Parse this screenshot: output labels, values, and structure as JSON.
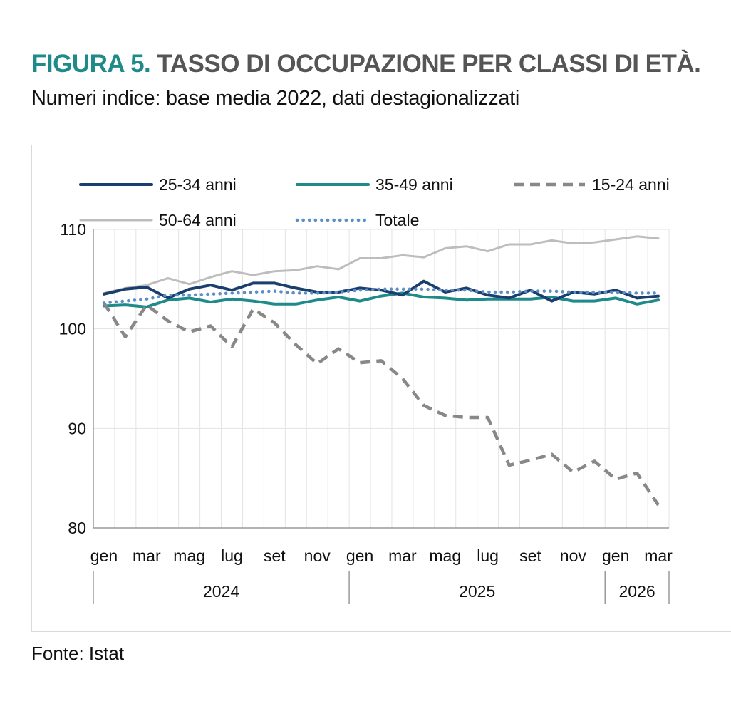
{
  "header": {
    "figure_label": "FIGURA 5.",
    "title": "TASSO DI OCCUPAZIONE PER CLASSI DI ETÀ.",
    "subtitle": "Numeri indice: base media 2022, dati destagionalizzati"
  },
  "footer": {
    "source": "Fonte: Istat"
  },
  "chart_data": {
    "type": "line",
    "title": "",
    "xlabel": "",
    "ylabel": "",
    "ylim": [
      80,
      110
    ],
    "yticks": [
      80,
      90,
      100,
      110
    ],
    "grid": true,
    "legend_position": "top",
    "x": [
      "gen 2024",
      "feb 2024",
      "mar 2024",
      "apr 2024",
      "mag 2024",
      "giu 2024",
      "lug 2024",
      "ago 2024",
      "set 2024",
      "ott 2024",
      "nov 2024",
      "dic 2024",
      "gen 2025",
      "feb 2025",
      "mar 2025",
      "apr 2025",
      "mag 2025",
      "giu 2025",
      "lug 2025",
      "ago 2025",
      "set 2025",
      "ott 2025",
      "nov 2025",
      "dic 2025",
      "gen 2026",
      "feb 2026",
      "mar 2026"
    ],
    "month_tick_labels": [
      "gen",
      "",
      "mar",
      "",
      "mag",
      "",
      "lug",
      "",
      "set",
      "",
      "nov",
      "",
      "gen",
      "",
      "mar",
      "",
      "mag",
      "",
      "lug",
      "",
      "set",
      "",
      "nov",
      "",
      "gen",
      "",
      "mar"
    ],
    "year_groups": [
      {
        "label": "2024",
        "start": 0,
        "end": 11
      },
      {
        "label": "2025",
        "start": 12,
        "end": 23
      },
      {
        "label": "2026",
        "start": 24,
        "end": 26
      }
    ],
    "series": [
      {
        "name": "25-34 anni",
        "color": "#1a3f6e",
        "style": "solid",
        "values": [
          103.5,
          104.0,
          104.2,
          103.1,
          104.0,
          104.4,
          103.9,
          104.6,
          104.6,
          104.1,
          103.7,
          103.7,
          104.1,
          103.9,
          103.4,
          104.8,
          103.7,
          104.1,
          103.4,
          103.1,
          103.9,
          102.8,
          103.7,
          103.5,
          103.9,
          103.1,
          103.3
        ]
      },
      {
        "name": "35-49 anni",
        "color": "#1f8a8a",
        "style": "solid",
        "values": [
          102.3,
          102.4,
          102.2,
          102.9,
          103.1,
          102.7,
          103.0,
          102.8,
          102.5,
          102.5,
          102.9,
          103.2,
          102.8,
          103.3,
          103.6,
          103.2,
          103.1,
          102.9,
          103.0,
          103.0,
          103.0,
          103.2,
          102.8,
          102.8,
          103.1,
          102.5,
          102.9
        ]
      },
      {
        "name": "15-24 anni",
        "color": "#888888",
        "style": "dashed",
        "values": [
          102.6,
          99.2,
          102.4,
          100.8,
          99.7,
          100.3,
          98.2,
          102.0,
          100.6,
          98.4,
          96.5,
          98.0,
          96.6,
          96.8,
          95.0,
          92.3,
          91.3,
          91.1,
          91.1,
          86.3,
          86.8,
          87.4,
          85.6,
          86.7,
          84.9,
          85.5,
          82.3
        ]
      },
      {
        "name": "50-64 anni",
        "color": "#bdbdbd",
        "style": "solid",
        "values": [
          103.6,
          104.1,
          104.4,
          105.1,
          104.5,
          105.2,
          105.8,
          105.4,
          105.8,
          105.9,
          106.3,
          106.0,
          107.1,
          107.1,
          107.4,
          107.2,
          108.1,
          108.3,
          107.8,
          108.5,
          108.5,
          108.9,
          108.6,
          108.7,
          109.0,
          109.3,
          109.1
        ]
      },
      {
        "name": "Totale",
        "color": "#5b8ec6",
        "style": "dotted",
        "values": [
          102.6,
          102.8,
          103.0,
          103.4,
          103.4,
          103.5,
          103.6,
          103.7,
          103.8,
          103.6,
          103.6,
          103.7,
          103.9,
          104.0,
          104.0,
          104.0,
          103.9,
          103.9,
          103.7,
          103.7,
          103.8,
          103.8,
          103.7,
          103.7,
          103.7,
          103.6,
          103.6
        ]
      }
    ]
  }
}
